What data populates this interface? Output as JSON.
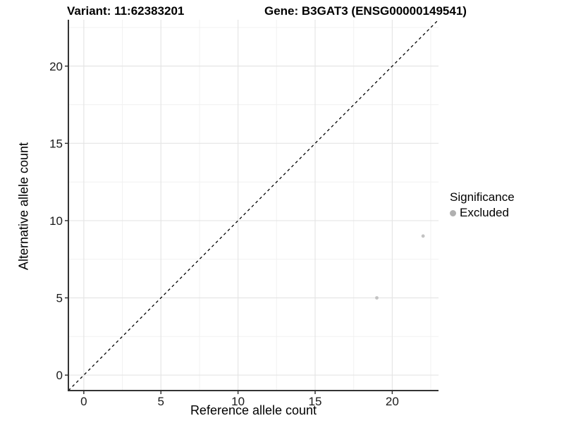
{
  "header": {
    "variant_title": "Variant: 11:62383201",
    "gene_title": "Gene: B3GAT3 (ENSG00000149541)"
  },
  "legend": {
    "title": "Significance",
    "items": [
      {
        "label": "Excluded",
        "color": "#b0b0b0"
      }
    ]
  },
  "chart_data": {
    "type": "scatter",
    "xlabel": "Reference allele count",
    "ylabel": "Alternative allele count",
    "xlim": [
      -1,
      23
    ],
    "ylim": [
      -1,
      23
    ],
    "xticks": [
      0,
      5,
      10,
      15,
      20
    ],
    "yticks": [
      0,
      5,
      10,
      15,
      20
    ],
    "xticks_minor": [
      2.5,
      7.5,
      12.5,
      17.5,
      22.5
    ],
    "yticks_minor": [
      2.5,
      7.5,
      12.5,
      17.5,
      22.5
    ],
    "grid": "major+minor",
    "legend_position": "right",
    "series": [
      {
        "name": "Excluded",
        "color": "#c3c3c3",
        "points": [
          {
            "x": 19,
            "y": 5
          },
          {
            "x": 22,
            "y": 9
          }
        ]
      }
    ],
    "reference_line": {
      "type": "identity",
      "style": "dashed",
      "color": "#000000"
    }
  }
}
